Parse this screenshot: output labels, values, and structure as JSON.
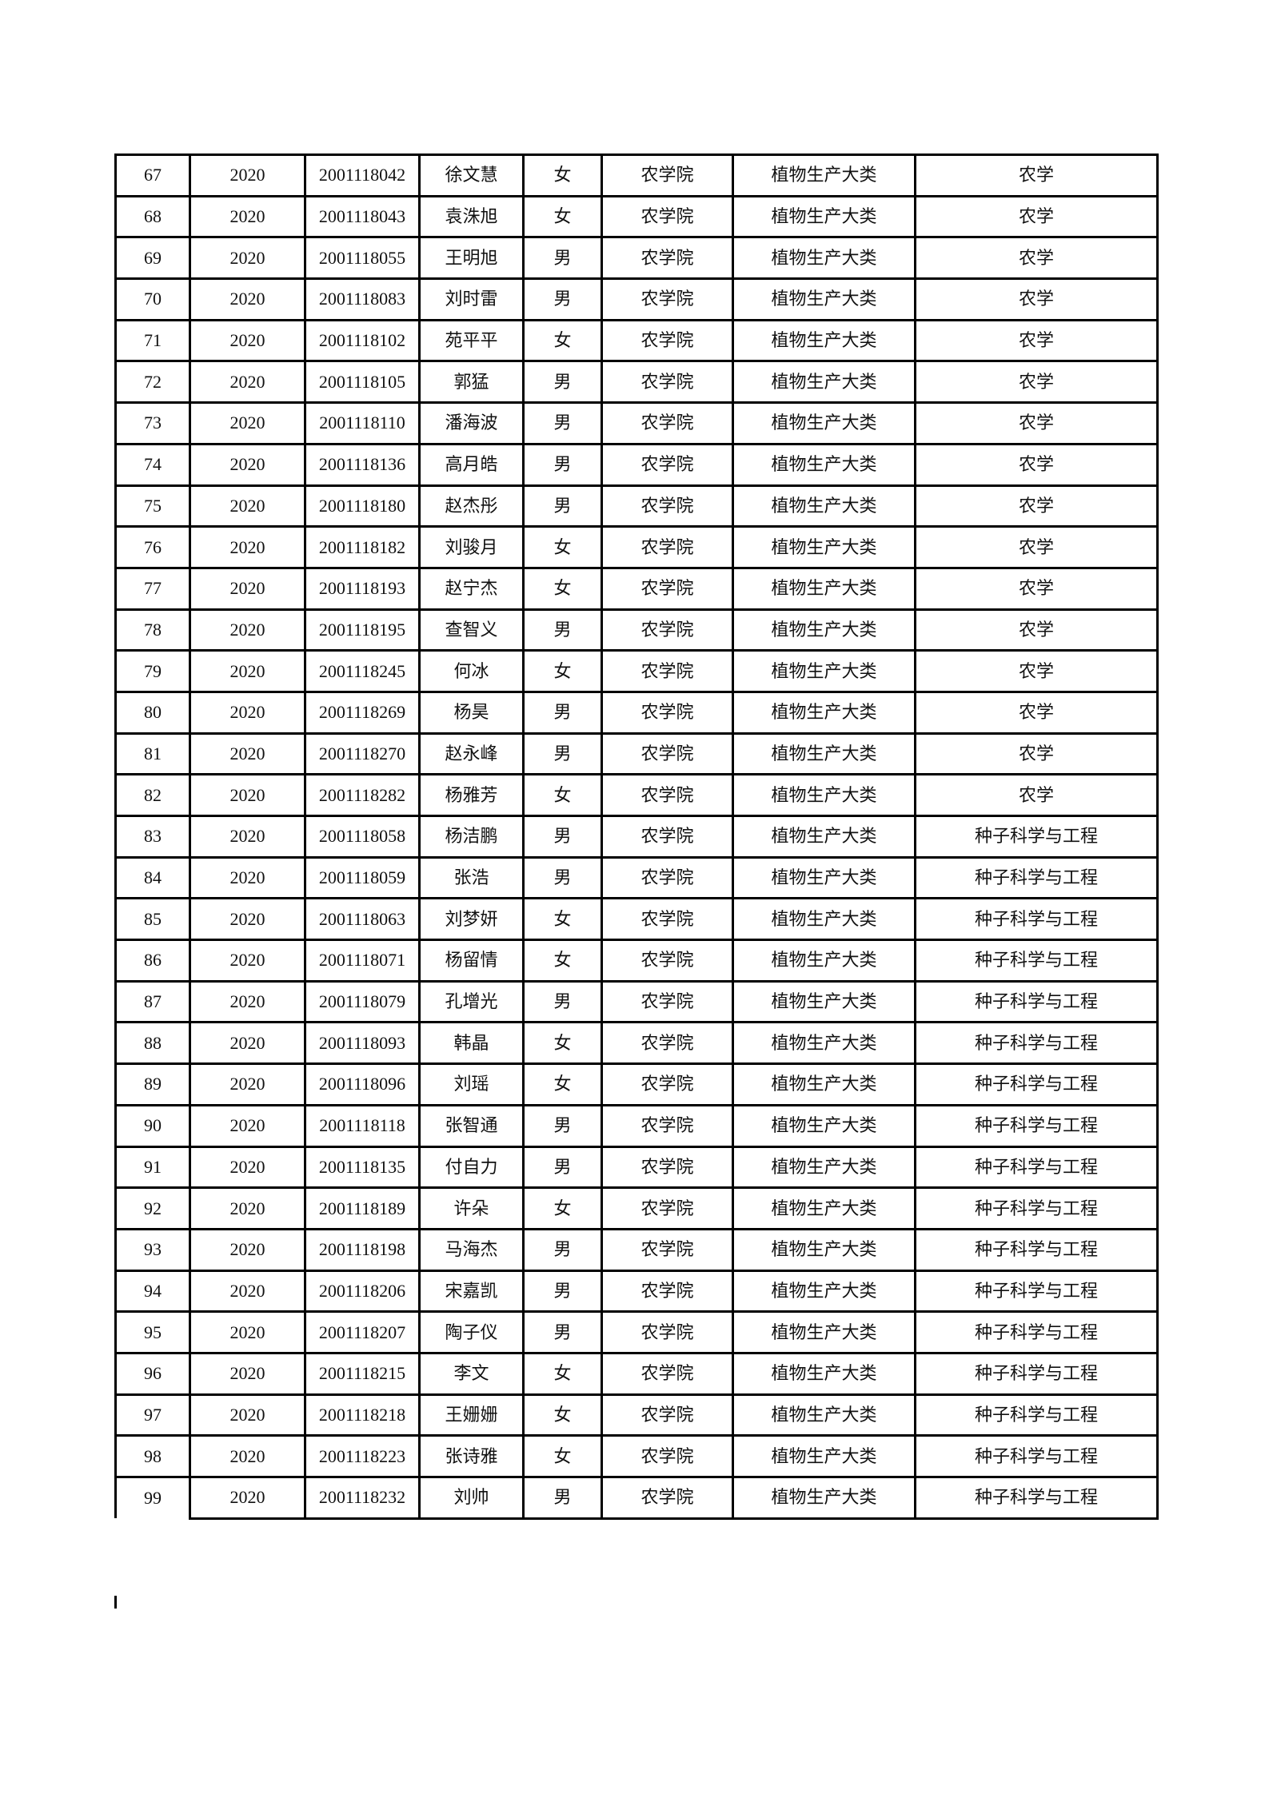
{
  "rows": [
    [
      "67",
      "2020",
      "2001118042",
      "徐文慧",
      "女",
      "农学院",
      "植物生产大类",
      "农学"
    ],
    [
      "68",
      "2020",
      "2001118043",
      "袁洙旭",
      "女",
      "农学院",
      "植物生产大类",
      "农学"
    ],
    [
      "69",
      "2020",
      "2001118055",
      "王明旭",
      "男",
      "农学院",
      "植物生产大类",
      "农学"
    ],
    [
      "70",
      "2020",
      "2001118083",
      "刘时雷",
      "男",
      "农学院",
      "植物生产大类",
      "农学"
    ],
    [
      "71",
      "2020",
      "2001118102",
      "苑平平",
      "女",
      "农学院",
      "植物生产大类",
      "农学"
    ],
    [
      "72",
      "2020",
      "2001118105",
      "郭猛",
      "男",
      "农学院",
      "植物生产大类",
      "农学"
    ],
    [
      "73",
      "2020",
      "2001118110",
      "潘海波",
      "男",
      "农学院",
      "植物生产大类",
      "农学"
    ],
    [
      "74",
      "2020",
      "2001118136",
      "高月皓",
      "男",
      "农学院",
      "植物生产大类",
      "农学"
    ],
    [
      "75",
      "2020",
      "2001118180",
      "赵杰彤",
      "男",
      "农学院",
      "植物生产大类",
      "农学"
    ],
    [
      "76",
      "2020",
      "2001118182",
      "刘骏月",
      "女",
      "农学院",
      "植物生产大类",
      "农学"
    ],
    [
      "77",
      "2020",
      "2001118193",
      "赵宁杰",
      "女",
      "农学院",
      "植物生产大类",
      "农学"
    ],
    [
      "78",
      "2020",
      "2001118195",
      "查智义",
      "男",
      "农学院",
      "植物生产大类",
      "农学"
    ],
    [
      "79",
      "2020",
      "2001118245",
      "何冰",
      "女",
      "农学院",
      "植物生产大类",
      "农学"
    ],
    [
      "80",
      "2020",
      "2001118269",
      "杨昊",
      "男",
      "农学院",
      "植物生产大类",
      "农学"
    ],
    [
      "81",
      "2020",
      "2001118270",
      "赵永峰",
      "男",
      "农学院",
      "植物生产大类",
      "农学"
    ],
    [
      "82",
      "2020",
      "2001118282",
      "杨雅芳",
      "女",
      "农学院",
      "植物生产大类",
      "农学"
    ],
    [
      "83",
      "2020",
      "2001118058",
      "杨洁鹏",
      "男",
      "农学院",
      "植物生产大类",
      "种子科学与工程"
    ],
    [
      "84",
      "2020",
      "2001118059",
      "张浩",
      "男",
      "农学院",
      "植物生产大类",
      "种子科学与工程"
    ],
    [
      "85",
      "2020",
      "2001118063",
      "刘梦妍",
      "女",
      "农学院",
      "植物生产大类",
      "种子科学与工程"
    ],
    [
      "86",
      "2020",
      "2001118071",
      "杨留情",
      "女",
      "农学院",
      "植物生产大类",
      "种子科学与工程"
    ],
    [
      "87",
      "2020",
      "2001118079",
      "孔增光",
      "男",
      "农学院",
      "植物生产大类",
      "种子科学与工程"
    ],
    [
      "88",
      "2020",
      "2001118093",
      "韩晶",
      "女",
      "农学院",
      "植物生产大类",
      "种子科学与工程"
    ],
    [
      "89",
      "2020",
      "2001118096",
      "刘瑶",
      "女",
      "农学院",
      "植物生产大类",
      "种子科学与工程"
    ],
    [
      "90",
      "2020",
      "2001118118",
      "张智通",
      "男",
      "农学院",
      "植物生产大类",
      "种子科学与工程"
    ],
    [
      "91",
      "2020",
      "2001118135",
      "付自力",
      "男",
      "农学院",
      "植物生产大类",
      "种子科学与工程"
    ],
    [
      "92",
      "2020",
      "2001118189",
      "许朵",
      "女",
      "农学院",
      "植物生产大类",
      "种子科学与工程"
    ],
    [
      "93",
      "2020",
      "2001118198",
      "马海杰",
      "男",
      "农学院",
      "植物生产大类",
      "种子科学与工程"
    ],
    [
      "94",
      "2020",
      "2001118206",
      "宋嘉凯",
      "男",
      "农学院",
      "植物生产大类",
      "种子科学与工程"
    ],
    [
      "95",
      "2020",
      "2001118207",
      "陶子仪",
      "男",
      "农学院",
      "植物生产大类",
      "种子科学与工程"
    ],
    [
      "96",
      "2020",
      "2001118215",
      "李文",
      "女",
      "农学院",
      "植物生产大类",
      "种子科学与工程"
    ],
    [
      "97",
      "2020",
      "2001118218",
      "王姗姗",
      "女",
      "农学院",
      "植物生产大类",
      "种子科学与工程"
    ],
    [
      "98",
      "2020",
      "2001118223",
      "张诗雅",
      "女",
      "农学院",
      "植物生产大类",
      "种子科学与工程"
    ],
    [
      "99",
      "2020",
      "2001118232",
      "刘帅",
      "男",
      "农学院",
      "植物生产大类",
      "种子科学与工程"
    ]
  ]
}
